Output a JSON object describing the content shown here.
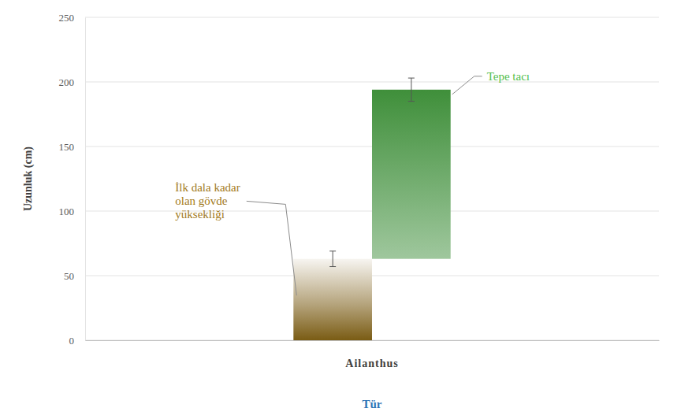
{
  "chart_data": {
    "type": "bar",
    "stacked": true,
    "categories": [
      "Ailanthus"
    ],
    "series": [
      {
        "name": "İlk dala kadar olan gövde yüksekliği",
        "color": "#7a5c14",
        "values": [
          63
        ],
        "errors": [
          6
        ]
      },
      {
        "name": "Tepe tacı",
        "color": "#3f8f3a",
        "values": [
          131
        ],
        "errors": [
          9
        ]
      }
    ],
    "y_label": "Uzunluk (cm)",
    "x_label": "Tür",
    "ylim": [
      0,
      250
    ],
    "yticks": [
      0,
      50,
      100,
      150,
      200,
      250
    ],
    "grid": true
  }
}
